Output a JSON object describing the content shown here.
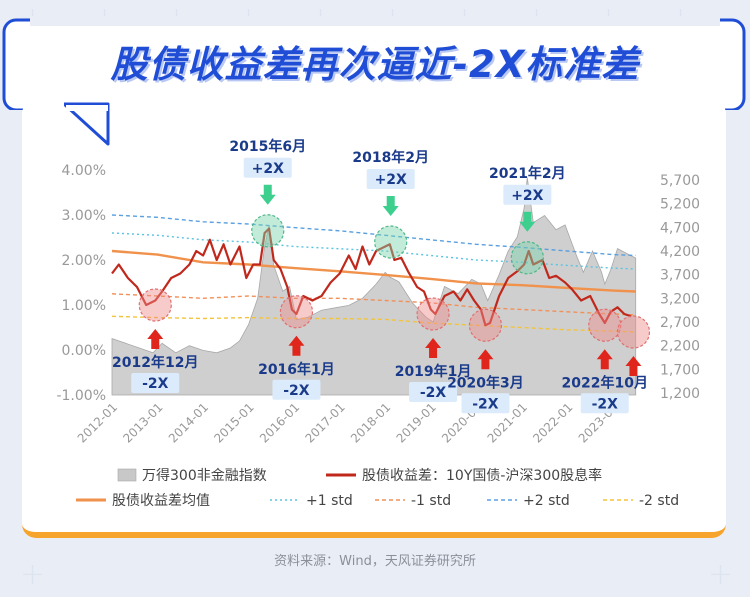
{
  "title": "股债收益差再次逼近-2X标准差",
  "source": "资料来源：Wind，天风证券研究所",
  "chart_data": {
    "type": "line",
    "xlabel": "",
    "ylabel": "",
    "x_ticks": [
      "2012-01",
      "2013-01",
      "2014-01",
      "2015-01",
      "2016-01",
      "2017-01",
      "2018-01",
      "2019-01",
      "2020-01",
      "2021-01",
      "2022-01",
      "2023-01"
    ],
    "y_left": {
      "ticks": [
        "-1.00%",
        "0.00%",
        "1.00%",
        "2.00%",
        "3.00%",
        "4.00%"
      ],
      "range": [
        -1.0,
        4.0
      ]
    },
    "y_right": {
      "ticks": [
        "1,200",
        "1,700",
        "2,200",
        "2,700",
        "3,200",
        "3,700",
        "4,200",
        "4,700",
        "5,200",
        "5,700"
      ],
      "range": [
        1200,
        5700
      ]
    },
    "legend": {
      "placement": "bottom",
      "items": [
        {
          "label": "万得300非金融指数",
          "color": "#c8c8c8",
          "style": "area"
        },
        {
          "label": "股债收益差：10Y国债-沪深300股息率",
          "color": "#c0281c",
          "style": "line"
        },
        {
          "label": "股债收益差均值",
          "color": "#f0914c",
          "style": "line"
        },
        {
          "label": "+1 std",
          "color": "#59c3e0",
          "style": "dotted"
        },
        {
          "label": "-1 std",
          "color": "#f0915a",
          "style": "dashed"
        },
        {
          "label": "+2 std",
          "color": "#5aa0e0",
          "style": "dashed"
        },
        {
          "label": "-2 std",
          "color": "#f2c43c",
          "style": "dashed"
        }
      ]
    },
    "series": [
      {
        "name": "万得300非金融指数",
        "axis": "right",
        "points": [
          [
            2012.0,
            2350
          ],
          [
            2012.3,
            2250
          ],
          [
            2012.6,
            2150
          ],
          [
            2012.9,
            2050
          ],
          [
            2013.1,
            2250
          ],
          [
            2013.4,
            2050
          ],
          [
            2013.7,
            2200
          ],
          [
            2014.0,
            2100
          ],
          [
            2014.3,
            2050
          ],
          [
            2014.6,
            2150
          ],
          [
            2014.8,
            2300
          ],
          [
            2015.0,
            2650
          ],
          [
            2015.2,
            3200
          ],
          [
            2015.35,
            4300
          ],
          [
            2015.45,
            4750
          ],
          [
            2015.55,
            3900
          ],
          [
            2015.75,
            3350
          ],
          [
            2015.9,
            3450
          ],
          [
            2016.05,
            2750
          ],
          [
            2016.3,
            2800
          ],
          [
            2016.6,
            2950
          ],
          [
            2016.9,
            3000
          ],
          [
            2017.2,
            3050
          ],
          [
            2017.5,
            3200
          ],
          [
            2017.8,
            3500
          ],
          [
            2018.0,
            3750
          ],
          [
            2018.1,
            3650
          ],
          [
            2018.3,
            3550
          ],
          [
            2018.6,
            3100
          ],
          [
            2018.9,
            2800
          ],
          [
            2019.05,
            2700
          ],
          [
            2019.3,
            3450
          ],
          [
            2019.6,
            3300
          ],
          [
            2019.9,
            3600
          ],
          [
            2020.1,
            3500
          ],
          [
            2020.25,
            3150
          ],
          [
            2020.5,
            3700
          ],
          [
            2020.7,
            4200
          ],
          [
            2020.9,
            4500
          ],
          [
            2021.05,
            5100
          ],
          [
            2021.12,
            5750
          ],
          [
            2021.25,
            4800
          ],
          [
            2021.5,
            4950
          ],
          [
            2021.75,
            4650
          ],
          [
            2021.95,
            4750
          ],
          [
            2022.2,
            4100
          ],
          [
            2022.35,
            3750
          ],
          [
            2022.55,
            4200
          ],
          [
            2022.75,
            3750
          ],
          [
            2022.82,
            3500
          ],
          [
            2022.95,
            3800
          ],
          [
            2023.1,
            4250
          ],
          [
            2023.3,
            4150
          ],
          [
            2023.5,
            4050
          ]
        ]
      },
      {
        "name": "股债收益差：10Y国债-沪深300股息率",
        "axis": "left",
        "points": [
          [
            2012.0,
            1.7
          ],
          [
            2012.15,
            1.9
          ],
          [
            2012.35,
            1.6
          ],
          [
            2012.55,
            1.4
          ],
          [
            2012.75,
            1.0
          ],
          [
            2012.95,
            1.1
          ],
          [
            2013.1,
            1.3
          ],
          [
            2013.3,
            1.6
          ],
          [
            2013.5,
            1.7
          ],
          [
            2013.7,
            1.9
          ],
          [
            2013.85,
            2.2
          ],
          [
            2014.0,
            2.1
          ],
          [
            2014.15,
            2.45
          ],
          [
            2014.3,
            2.0
          ],
          [
            2014.45,
            2.35
          ],
          [
            2014.6,
            1.9
          ],
          [
            2014.8,
            2.3
          ],
          [
            2014.95,
            1.6
          ],
          [
            2015.1,
            1.9
          ],
          [
            2015.25,
            1.9
          ],
          [
            2015.35,
            2.6
          ],
          [
            2015.45,
            2.7
          ],
          [
            2015.55,
            2.0
          ],
          [
            2015.7,
            1.8
          ],
          [
            2015.85,
            1.4
          ],
          [
            2015.95,
            0.9
          ],
          [
            2016.05,
            0.8
          ],
          [
            2016.2,
            1.2
          ],
          [
            2016.4,
            1.1
          ],
          [
            2016.6,
            1.2
          ],
          [
            2016.8,
            1.5
          ],
          [
            2017.0,
            1.7
          ],
          [
            2017.2,
            2.1
          ],
          [
            2017.35,
            1.8
          ],
          [
            2017.5,
            2.3
          ],
          [
            2017.65,
            1.9
          ],
          [
            2017.8,
            2.2
          ],
          [
            2018.0,
            2.3
          ],
          [
            2018.1,
            2.35
          ],
          [
            2018.2,
            2.0
          ],
          [
            2018.35,
            2.05
          ],
          [
            2018.5,
            1.75
          ],
          [
            2018.7,
            1.4
          ],
          [
            2018.85,
            1.3
          ],
          [
            2019.0,
            0.9
          ],
          [
            2019.1,
            0.8
          ],
          [
            2019.3,
            1.2
          ],
          [
            2019.5,
            1.3
          ],
          [
            2019.65,
            1.1
          ],
          [
            2019.8,
            1.35
          ],
          [
            2019.95,
            1.1
          ],
          [
            2020.1,
            0.9
          ],
          [
            2020.2,
            0.55
          ],
          [
            2020.3,
            0.6
          ],
          [
            2020.5,
            1.2
          ],
          [
            2020.7,
            1.6
          ],
          [
            2020.9,
            1.75
          ],
          [
            2021.05,
            1.9
          ],
          [
            2021.15,
            2.2
          ],
          [
            2021.25,
            1.9
          ],
          [
            2021.45,
            2.0
          ],
          [
            2021.6,
            1.6
          ],
          [
            2021.75,
            1.65
          ],
          [
            2021.95,
            1.5
          ],
          [
            2022.1,
            1.35
          ],
          [
            2022.3,
            1.1
          ],
          [
            2022.5,
            1.2
          ],
          [
            2022.7,
            0.8
          ],
          [
            2022.82,
            0.6
          ],
          [
            2022.95,
            0.85
          ],
          [
            2023.1,
            0.95
          ],
          [
            2023.25,
            0.8
          ],
          [
            2023.4,
            0.75
          ]
        ]
      },
      {
        "name": "股债收益差均值",
        "axis": "left",
        "points": [
          [
            2012.0,
            2.2
          ],
          [
            2013.0,
            2.12
          ],
          [
            2014.0,
            1.95
          ],
          [
            2015.0,
            1.9
          ],
          [
            2016.0,
            1.82
          ],
          [
            2017.0,
            1.75
          ],
          [
            2018.0,
            1.67
          ],
          [
            2019.0,
            1.58
          ],
          [
            2020.0,
            1.48
          ],
          [
            2021.0,
            1.44
          ],
          [
            2022.0,
            1.38
          ],
          [
            2023.0,
            1.32
          ],
          [
            2023.5,
            1.3
          ]
        ]
      },
      {
        "name": "+1 std",
        "axis": "left",
        "points": [
          [
            2012.0,
            2.6
          ],
          [
            2013.0,
            2.55
          ],
          [
            2014.0,
            2.45
          ],
          [
            2015.0,
            2.4
          ],
          [
            2016.0,
            2.3
          ],
          [
            2017.0,
            2.25
          ],
          [
            2018.0,
            2.2
          ],
          [
            2019.0,
            2.1
          ],
          [
            2020.0,
            2.0
          ],
          [
            2021.0,
            1.95
          ],
          [
            2022.0,
            1.88
          ],
          [
            2023.0,
            1.82
          ],
          [
            2023.5,
            1.8
          ]
        ]
      },
      {
        "name": "-1 std",
        "axis": "left",
        "points": [
          [
            2012.0,
            1.25
          ],
          [
            2013.0,
            1.2
          ],
          [
            2014.0,
            1.15
          ],
          [
            2015.0,
            1.2
          ],
          [
            2016.0,
            1.15
          ],
          [
            2017.0,
            1.15
          ],
          [
            2018.0,
            1.1
          ],
          [
            2019.0,
            1.05
          ],
          [
            2020.0,
            0.95
          ],
          [
            2021.0,
            0.9
          ],
          [
            2022.0,
            0.85
          ],
          [
            2023.0,
            0.8
          ],
          [
            2023.5,
            0.78
          ]
        ]
      },
      {
        "name": "+2 std",
        "axis": "left",
        "points": [
          [
            2012.0,
            3.0
          ],
          [
            2013.0,
            2.95
          ],
          [
            2014.0,
            2.85
          ],
          [
            2015.0,
            2.8
          ],
          [
            2016.0,
            2.72
          ],
          [
            2017.0,
            2.65
          ],
          [
            2018.0,
            2.55
          ],
          [
            2019.0,
            2.45
          ],
          [
            2020.0,
            2.35
          ],
          [
            2021.0,
            2.28
          ],
          [
            2022.0,
            2.2
          ],
          [
            2023.0,
            2.12
          ],
          [
            2023.5,
            2.1
          ]
        ]
      },
      {
        "name": "-2 std",
        "axis": "left",
        "points": [
          [
            2012.0,
            0.75
          ],
          [
            2013.0,
            0.72
          ],
          [
            2014.0,
            0.7
          ],
          [
            2015.0,
            0.72
          ],
          [
            2016.0,
            0.7
          ],
          [
            2017.0,
            0.7
          ],
          [
            2018.0,
            0.68
          ],
          [
            2019.0,
            0.6
          ],
          [
            2020.0,
            0.55
          ],
          [
            2021.0,
            0.5
          ],
          [
            2022.0,
            0.45
          ],
          [
            2023.0,
            0.42
          ],
          [
            2023.5,
            0.4
          ]
        ]
      }
    ],
    "annotations": [
      {
        "date": "2012年12月",
        "tag": "-2X",
        "x": 2012.95,
        "y": 1.0,
        "kind": "low"
      },
      {
        "date": "2015年6月",
        "tag": "+2X",
        "x": 2015.42,
        "y": 2.65,
        "kind": "high"
      },
      {
        "date": "2016年1月",
        "tag": "-2X",
        "x": 2016.05,
        "y": 0.85,
        "kind": "low"
      },
      {
        "date": "2018年2月",
        "tag": "+2X",
        "x": 2018.12,
        "y": 2.4,
        "kind": "high"
      },
      {
        "date": "2019年1月",
        "tag": "-2X",
        "x": 2019.05,
        "y": 0.8,
        "kind": "low"
      },
      {
        "date": "2020年3月",
        "tag": "-2X",
        "x": 2020.2,
        "y": 0.55,
        "kind": "low"
      },
      {
        "date": "2021年2月",
        "tag": "+2X",
        "x": 2021.12,
        "y": 2.05,
        "kind": "high"
      },
      {
        "date": "2022年10月",
        "tag": "-2X",
        "x": 2022.82,
        "y": 0.55,
        "kind": "low"
      },
      {
        "date": "",
        "tag": "",
        "x": 2023.45,
        "y": 0.4,
        "kind": "low"
      }
    ]
  }
}
